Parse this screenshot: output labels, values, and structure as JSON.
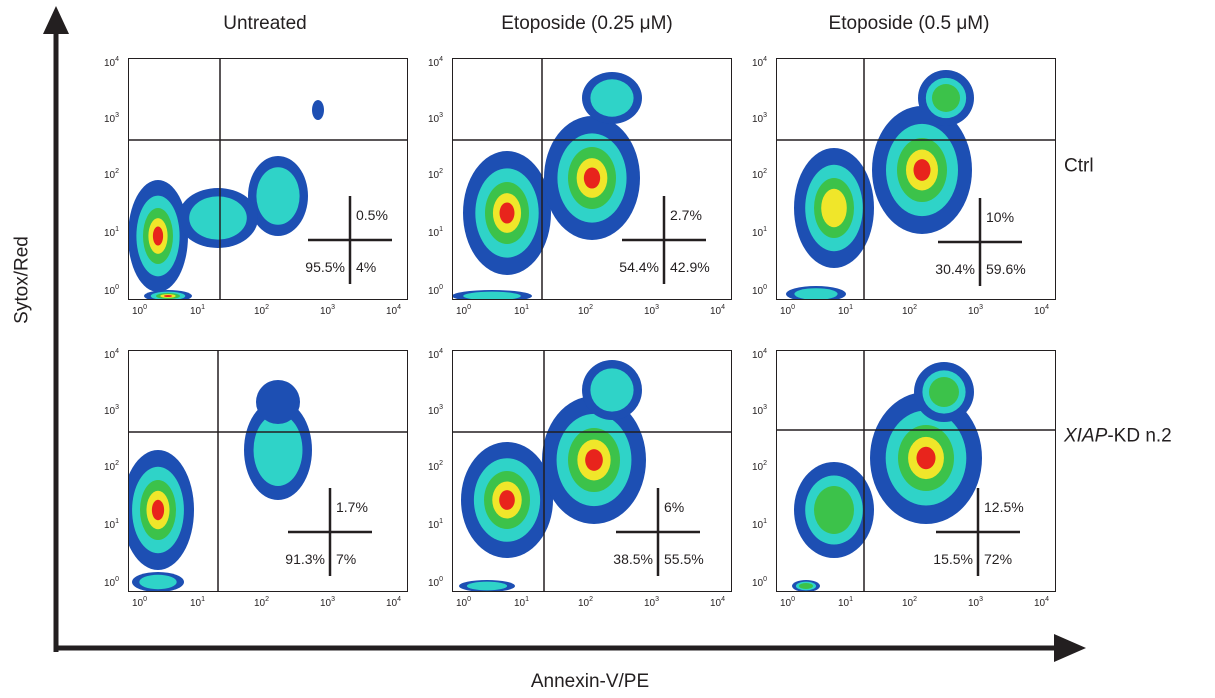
{
  "figure": {
    "column_titles": [
      "Untreated",
      "Etoposide (0.25 μM)",
      "Etoposide (0.5 μM)"
    ],
    "row_labels": [
      {
        "italic": "",
        "text": "Ctrl"
      },
      {
        "italic": "XIAP",
        "text": "-KD n.2"
      }
    ],
    "y_axis_title": "Sytox/Red",
    "x_axis_title": "Annexin-V/PE",
    "tick_base": "10",
    "tick_exponents": [
      "0",
      "1",
      "2",
      "3",
      "4"
    ],
    "colors": {
      "ink": "#231f20",
      "density_low": "#1d4fb3",
      "density_mid": "#2fd3c8",
      "density_green": "#3cc24a",
      "density_yellow": "#f0e62a",
      "density_high": "#e8241c"
    }
  },
  "panels": [
    {
      "name": "ctrl-untreated",
      "upper_right": "0.5%",
      "lower_left": "95.5%",
      "lower_right": "4%"
    },
    {
      "name": "ctrl-etoposide-025",
      "upper_right": "2.7%",
      "lower_left": "54.4%",
      "lower_right": "42.9%"
    },
    {
      "name": "ctrl-etoposide-05",
      "upper_right": "10%",
      "lower_left": "30.4%",
      "lower_right": "59.6%"
    },
    {
      "name": "xiap-kd-untreated",
      "upper_right": "1.7%",
      "lower_left": "91.3%",
      "lower_right": "7%"
    },
    {
      "name": "xiap-kd-etoposide-025",
      "upper_right": "6%",
      "lower_left": "38.5%",
      "lower_right": "55.5%"
    },
    {
      "name": "xiap-kd-etoposide-05",
      "upper_right": "12.5%",
      "lower_left": "15.5%",
      "lower_right": "72%"
    }
  ]
}
